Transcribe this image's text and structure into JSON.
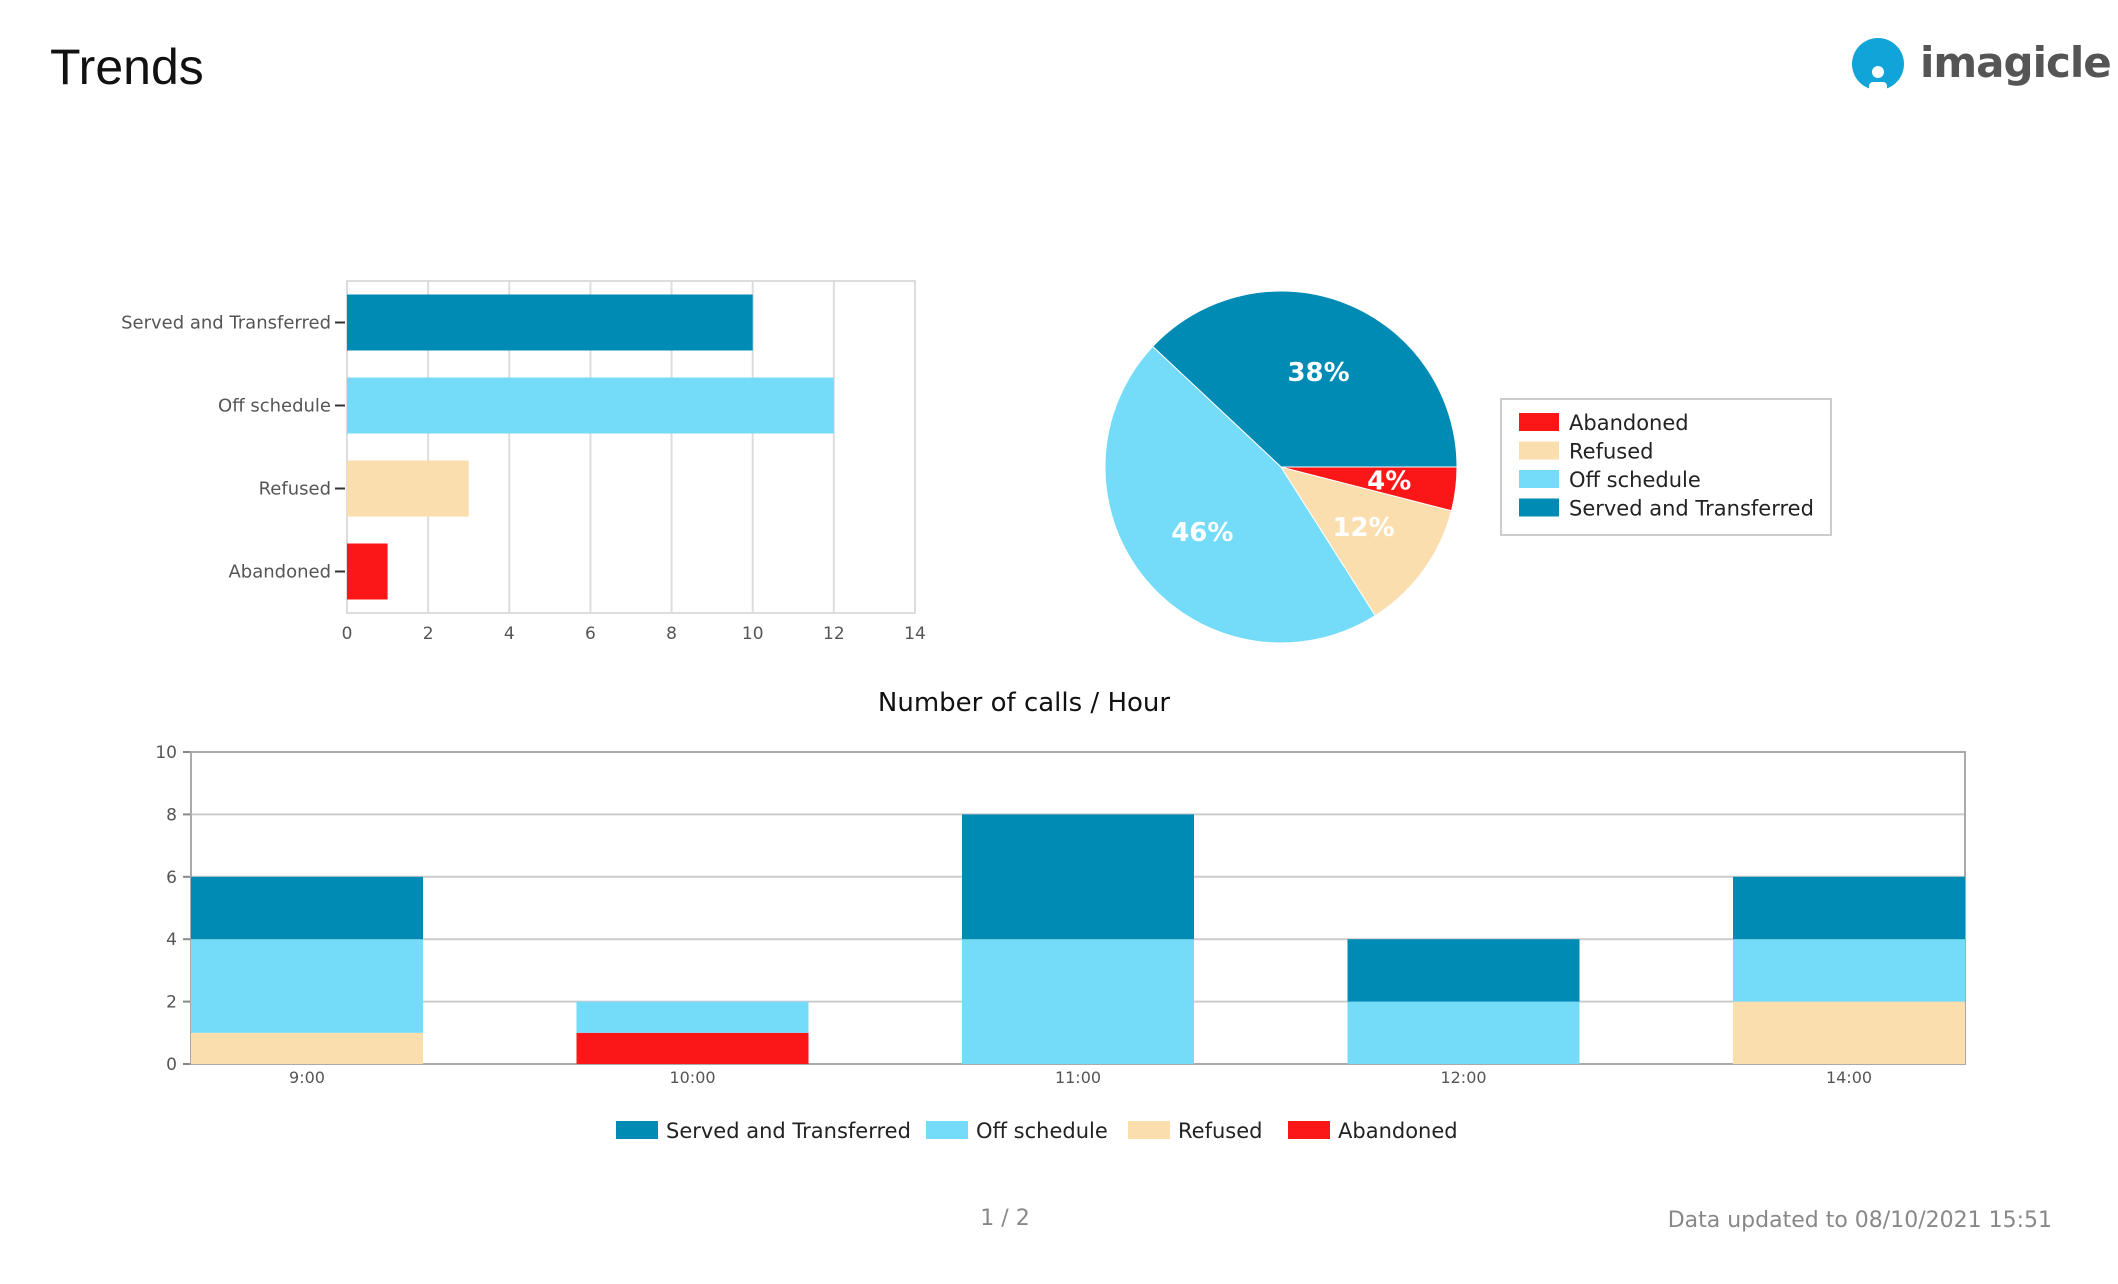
{
  "header": {
    "title": "Trends",
    "logo_text": "imagicle"
  },
  "colors": {
    "served": "#008bb5",
    "off": "#74dcf8",
    "refused": "#fbdeae",
    "abandoned": "#fb1717"
  },
  "chart_data": [
    {
      "type": "bar",
      "orientation": "horizontal",
      "categories": [
        "Served and Transferred",
        "Off schedule",
        "Refused",
        "Abandoned"
      ],
      "values": [
        10,
        12,
        3,
        1
      ],
      "xlim": [
        0,
        14
      ],
      "xticks": [
        "0",
        "2",
        "4",
        "6",
        "8",
        "10",
        "12",
        "14"
      ],
      "grid": true
    },
    {
      "type": "pie",
      "slices": [
        {
          "name": "Served and Transferred",
          "value": 38,
          "label": "38%"
        },
        {
          "name": "Off schedule",
          "value": 46,
          "label": "46%"
        },
        {
          "name": "Refused",
          "value": 12,
          "label": "12%"
        },
        {
          "name": "Abandoned",
          "value": 4,
          "label": "4%"
        }
      ],
      "legend": [
        "Abandoned",
        "Refused",
        "Off schedule",
        "Served and Transferred"
      ],
      "legend_position": "right"
    },
    {
      "type": "bar",
      "stacked": true,
      "title": "Number of calls / Hour",
      "categories": [
        "9:00",
        "10:00",
        "11:00",
        "12:00",
        "14:00"
      ],
      "series": [
        {
          "name": "Abandoned",
          "values": [
            0,
            1,
            0,
            0,
            0
          ]
        },
        {
          "name": "Refused",
          "values": [
            1,
            0,
            0,
            0,
            2
          ]
        },
        {
          "name": "Off schedule",
          "values": [
            3,
            1,
            4,
            2,
            2
          ]
        },
        {
          "name": "Served and Transferred",
          "values": [
            2,
            0,
            4,
            2,
            2
          ]
        }
      ],
      "ylim": [
        0,
        10
      ],
      "yticks": [
        "0",
        "2",
        "4",
        "6",
        "8",
        "10"
      ],
      "legend": [
        "Served and Transferred",
        "Off schedule",
        "Refused",
        "Abandoned"
      ],
      "legend_position": "bottom",
      "grid": true
    }
  ],
  "footer": {
    "page": "1 / 2",
    "updated": "Data updated to 08/10/2021 15:51"
  }
}
